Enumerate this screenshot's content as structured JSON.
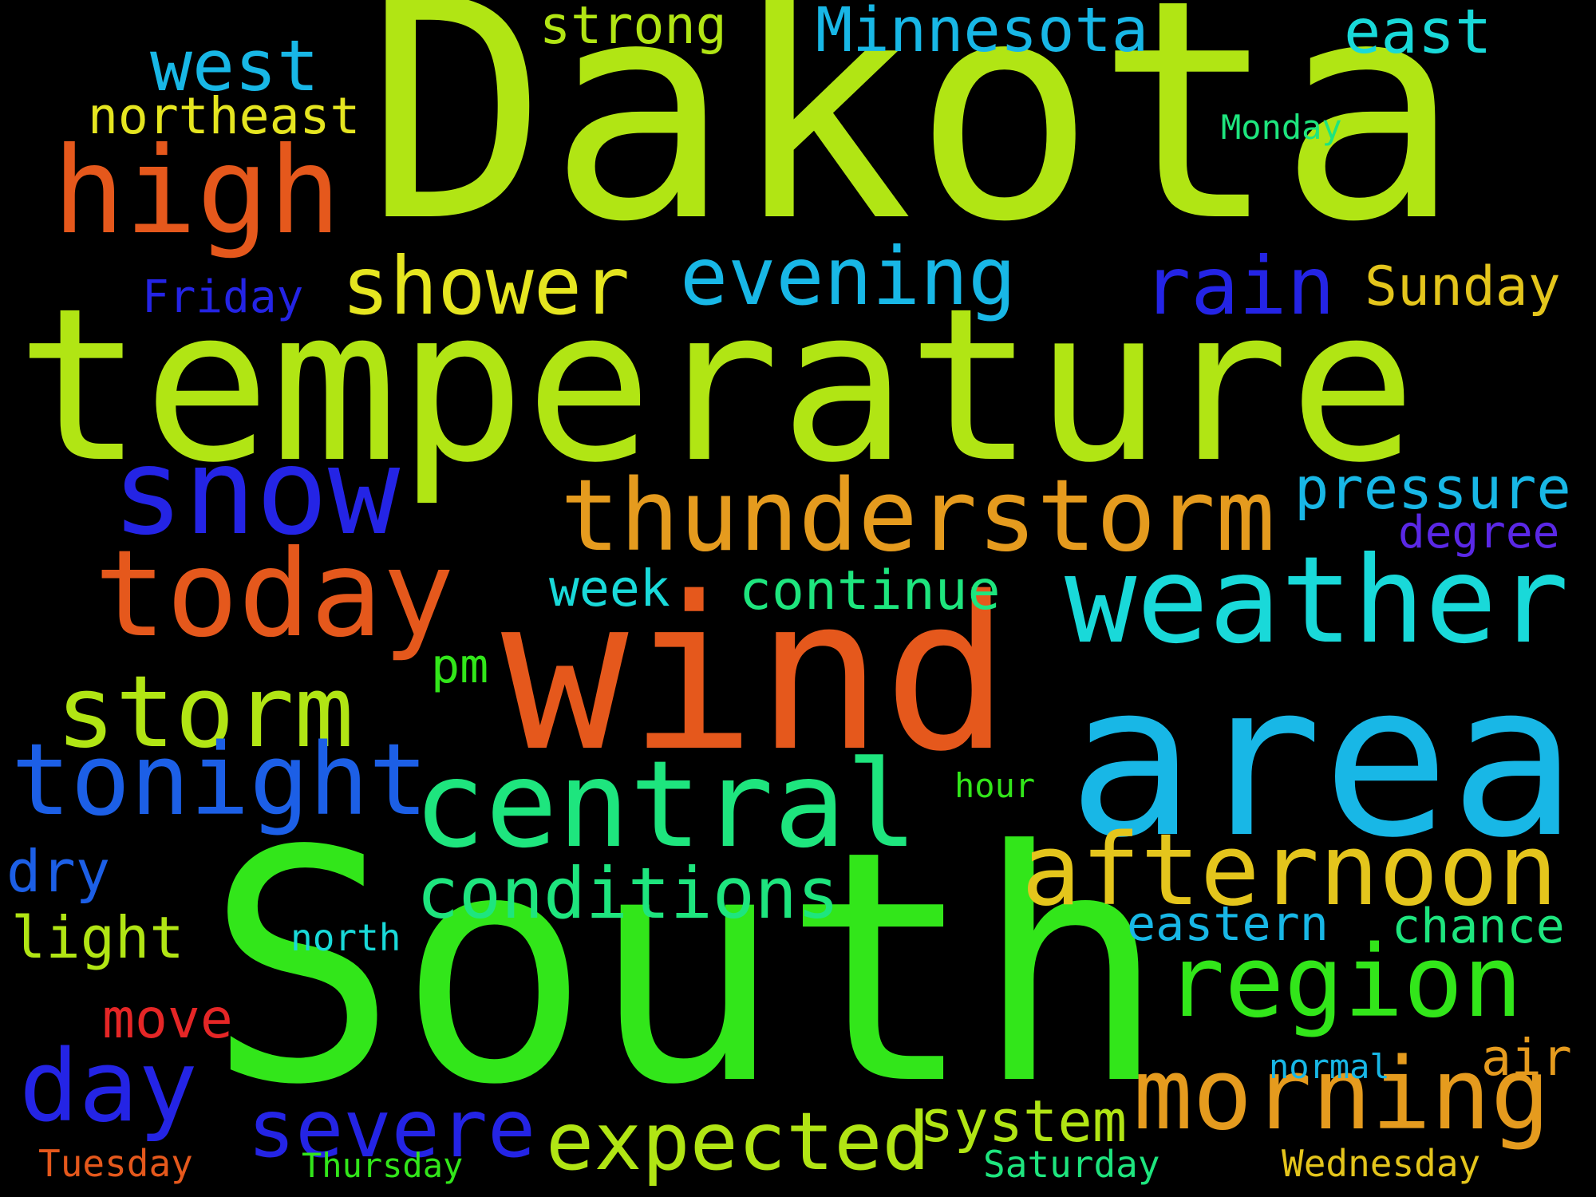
{
  "colors": {
    "background": "#000000",
    "lime": "#b1e514",
    "green": "#32e61a",
    "orange_red": "#e5581c",
    "orange": "#e59b1e",
    "gold": "#e4c51c",
    "yellow": "#e5e520",
    "cyan": "#19d9d9",
    "sky": "#18b7e6",
    "blue": "#1c5fe6",
    "deep_blue": "#2424e5",
    "violet": "#5a28e6",
    "mint": "#1ee57e",
    "red": "#e52626"
  },
  "words": {
    "dakota": "Dakota",
    "temperature": "temperature",
    "south": "South",
    "wind": "wind",
    "area": "area",
    "high": "high",
    "snow": "snow",
    "today": "today",
    "weather": "weather",
    "central": "central",
    "thunderstorm": "thunderstorm",
    "storm": "storm",
    "tonight": "tonight",
    "morning": "morning",
    "afternoon": "afternoon",
    "region": "region",
    "shower": "shower",
    "rain": "rain",
    "evening": "evening",
    "day": "day",
    "severe": "severe",
    "expected": "expected",
    "conditions": "conditions",
    "west": "west",
    "minnesota": "Minnesota",
    "east": "east",
    "strong": "strong",
    "northeast": "northeast",
    "sunday": "Sunday",
    "pressure": "pressure",
    "degree": "degree",
    "continue": "continue",
    "week": "week",
    "system": "system",
    "dry": "dry",
    "light": "light",
    "move": "move",
    "air": "air",
    "chance": "chance",
    "eastern": "eastern",
    "pm": "pm",
    "friday": "Friday",
    "monday": "Monday",
    "hour": "hour",
    "north": "north",
    "normal": "normal",
    "tuesday": "Tuesday",
    "thursday": "Thursday",
    "saturday": "Saturday",
    "wednesday": "Wednesday"
  }
}
